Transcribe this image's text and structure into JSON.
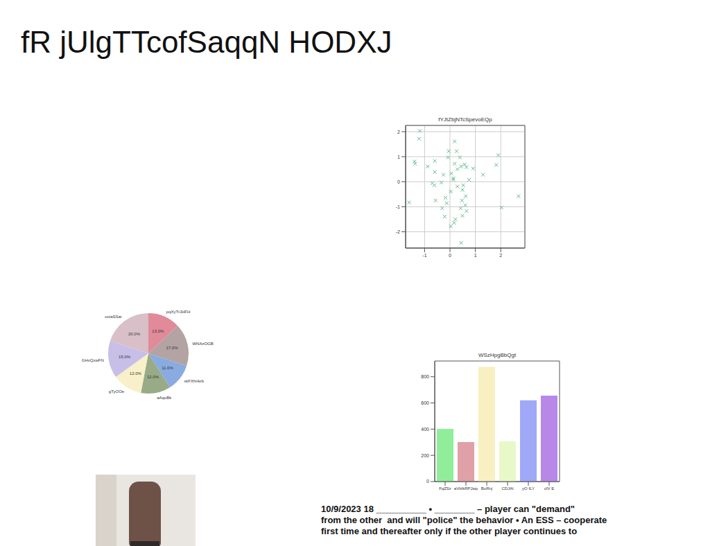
{
  "title": "fR jUlgTTcofSaqqN HODXJ",
  "chart_data": [
    {
      "type": "scatter",
      "title": "fYJtZbjNTcSpevoEQp",
      "x": [
        -1.19,
        -1.22,
        -1.4,
        -1.38,
        -1.61,
        -0.88,
        -0.6,
        -0.6,
        -0.7,
        -0.62,
        -0.57,
        -0.34,
        -0.26,
        -0.31,
        -0.18,
        -0.13,
        -0.21,
        -0.08,
        -0.05,
        0.05,
        0.13,
        0.13,
        0.03,
        0.03,
        0.18,
        0.18,
        0.26,
        0.29,
        0.29,
        0.21,
        0.16,
        0.39,
        0.44,
        0.52,
        0.42,
        0.47,
        0.49,
        0.49,
        0.44,
        0.57,
        0.6,
        0.62,
        0.65,
        0.65,
        0.75,
        0.91,
        1.3,
        1.82,
        1.9,
        2.03,
        2.7
      ],
      "values": [
        2.03,
        1.72,
        0.81,
        0.72,
        -0.83,
        0.61,
        0.83,
        0.39,
        -0.06,
        -0.14,
        -0.75,
        -0.03,
        0.28,
        -1.06,
        -0.64,
        -0.86,
        -1.39,
        0.97,
        1.22,
        0.33,
        0.14,
        0.08,
        -0.39,
        -1.78,
        1.61,
        0.72,
        1.22,
        0.5,
        -0.19,
        -1.5,
        -1.64,
        0.97,
        0.61,
        -0.14,
        -1.06,
        -0.75,
        -0.33,
        -1.36,
        -2.44,
        0.69,
        -0.94,
        -0.58,
        0.58,
        -1.17,
        0.08,
        0.53,
        0.28,
        0.67,
        1.06,
        -1.03,
        -0.58
      ],
      "color": "#5fba8c",
      "marker": "x",
      "xlim": [
        -1.75,
        2.95
      ],
      "xticks": [
        -1,
        0,
        1,
        2
      ],
      "ylim": [
        -2.65,
        2.25
      ],
      "yticks": [
        -2,
        -1,
        0,
        1,
        2
      ],
      "grid": true
    },
    {
      "type": "pie",
      "categories": [
        "pqXyTrJHFH",
        "WNAzOGB",
        "xkFXhrikrb",
        "aAquBk",
        "gTyOOe",
        "GHvQxwFN",
        "ooiaSSar"
      ],
      "values": [
        13,
        17,
        11,
        12,
        12,
        15,
        20
      ],
      "value_labels": [
        "13.0%",
        "17.0%",
        "11.0%",
        "12.0%",
        "12.0%",
        "15.0%",
        "20.0%"
      ],
      "colors": [
        "#e08a9a",
        "#b3a3a3",
        "#8aabe0",
        "#98ab86",
        "#f8f0c8",
        "#c8bfe8",
        "#d8bfc8"
      ],
      "data_labels": true
    },
    {
      "type": "bar",
      "title": "WSzHpgBbQgt",
      "categories": [
        "FqZSz",
        "aVbIkRPJwp",
        "BuRnj",
        "CDJAl",
        "yO fLY",
        "cfV E"
      ],
      "values": [
        402,
        302,
        875,
        307,
        620,
        655
      ],
      "colors": [
        "#90ee9a",
        "#e0a0a8",
        "#f8f0c0",
        "#e8f8c8",
        "#a0a8f8",
        "#b888e8"
      ],
      "ylim": [
        0,
        920
      ],
      "yticks": [
        0,
        200,
        400,
        600,
        800
      ],
      "grid": false
    }
  ],
  "text": [
    "10/9/2023 18 __________ • ________ – player can \"demand\"",
    "from the other  and will \"police\" the behavior • An ESS – cooperate",
    "first time and thereafter only if the other player continues to"
  ]
}
